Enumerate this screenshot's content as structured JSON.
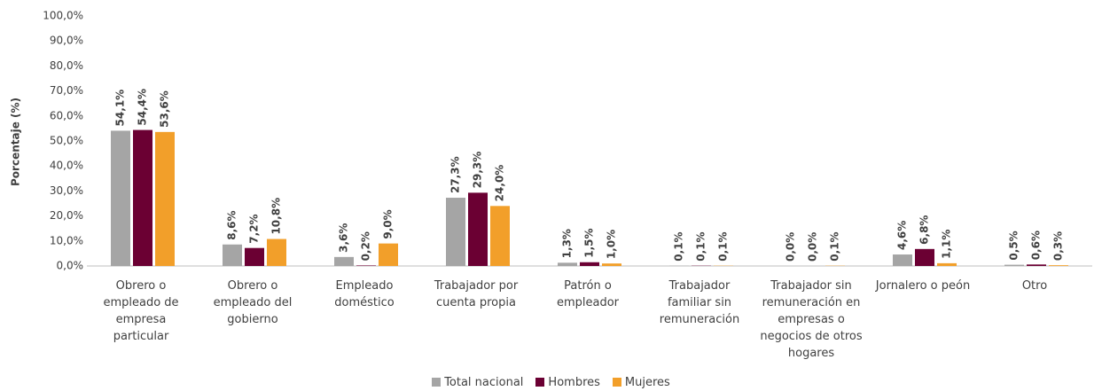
{
  "chart_data": {
    "type": "bar",
    "y_label": "Porcentaje (%)",
    "categories": [
      "Obrero o empleado de empresa particular",
      "Obrero o empleado del gobierno",
      "Empleado doméstico",
      "Trabajador por cuenta propia",
      "Patrón o empleador",
      "Trabajador familiar sin remuneración",
      "Trabajador sin remuneración en empresas o negocios de otros hogares",
      "Jornalero o peón",
      "Otro"
    ],
    "series": [
      {
        "name": "Total nacional",
        "color": "#a5a5a5",
        "values": [
          54.1,
          8.6,
          3.6,
          27.3,
          1.3,
          0.1,
          0.0,
          4.6,
          0.5
        ],
        "value_labels": [
          "54,1%",
          "8,6%",
          "3,6%",
          "27,3%",
          "1,3%",
          "0,1%",
          "0,0%",
          "4,6%",
          "0,5%"
        ]
      },
      {
        "name": "Hombres",
        "color": "#6b0033",
        "values": [
          54.4,
          7.2,
          0.2,
          29.3,
          1.5,
          0.1,
          0.0,
          6.8,
          0.6
        ],
        "value_labels": [
          "54,4%",
          "7,2%",
          "0,2%",
          "29,3%",
          "1,5%",
          "0,1%",
          "0,0%",
          "6,8%",
          "0,6%"
        ]
      },
      {
        "name": "Mujeres",
        "color": "#f29f2a",
        "values": [
          53.6,
          10.8,
          9.0,
          24.0,
          1.0,
          0.1,
          0.1,
          1.1,
          0.3
        ],
        "value_labels": [
          "53,6%",
          "10,8%",
          "9,0%",
          "24,0%",
          "1,0%",
          "0,1%",
          "0,1%",
          "1,1%",
          "0,3%"
        ]
      }
    ],
    "ylim": [
      0,
      100
    ],
    "yticks": [
      {
        "value": 0,
        "label": "0,0%"
      },
      {
        "value": 10,
        "label": "10,0%"
      },
      {
        "value": 20,
        "label": "20,0%"
      },
      {
        "value": 30,
        "label": "30,0%"
      },
      {
        "value": 40,
        "label": "40,0%"
      },
      {
        "value": 50,
        "label": "50,0%"
      },
      {
        "value": 60,
        "label": "60,0%"
      },
      {
        "value": 70,
        "label": "70,0%"
      },
      {
        "value": 80,
        "label": "80,0%"
      },
      {
        "value": 90,
        "label": "90,0%"
      },
      {
        "value": 100,
        "label": "100,0%"
      }
    ],
    "grid": false,
    "legend": "bottom"
  }
}
